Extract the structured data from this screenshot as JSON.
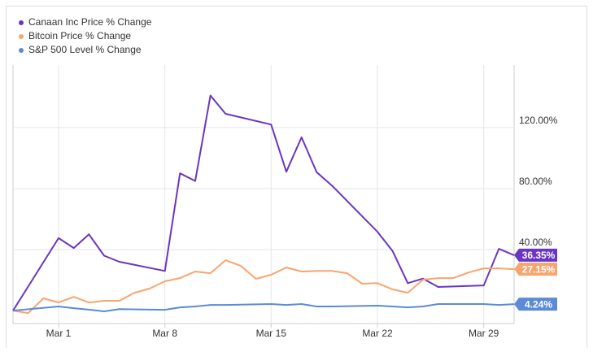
{
  "chart_data": {
    "type": "line",
    "xlim": [
      -2,
      31
    ],
    "xticks": [
      {
        "value": 1,
        "label": "Mar 1"
      },
      {
        "value": 8,
        "label": "Mar 8"
      },
      {
        "value": 15,
        "label": "Mar 15"
      },
      {
        "value": 22,
        "label": "Mar 22"
      },
      {
        "value": 29,
        "label": "Mar 29"
      }
    ],
    "ylim": [
      -8.5,
      161
    ],
    "yticks": [
      {
        "value": 40,
        "label": "40.00%"
      },
      {
        "value": 80,
        "label": "80.00%"
      },
      {
        "value": 120,
        "label": "120.00%"
      }
    ],
    "grid": true,
    "legend": "top-left",
    "series": [
      {
        "name": "Canaan Inc Price % Change",
        "color": "#6a35c2",
        "x": [
          -2,
          1,
          2,
          3,
          4,
          5,
          8,
          9,
          10,
          11,
          12,
          15,
          16,
          17,
          18,
          19,
          22,
          23,
          24,
          25,
          26,
          29,
          30,
          31
        ],
        "values": [
          0,
          47.5,
          41,
          50,
          36,
          32,
          26,
          90,
          85,
          141,
          129,
          122,
          91,
          113.6,
          90.7,
          82,
          51.7,
          39,
          18,
          21,
          15.5,
          16.5,
          40.5,
          36.35
        ],
        "end_label": "36.35%"
      },
      {
        "name": "Bitcoin Price % Change",
        "color": "#f7a56e",
        "x": [
          -2,
          -1,
          0,
          1,
          2,
          3,
          4,
          5,
          6,
          7,
          8,
          9,
          10,
          11,
          12,
          13,
          14,
          15,
          16,
          17,
          18,
          19,
          20,
          21,
          22,
          23,
          24,
          25,
          26,
          27,
          28,
          29,
          30,
          31
        ],
        "values": [
          0,
          -1.6,
          8,
          5.3,
          9,
          5.3,
          6.4,
          6.4,
          11.7,
          14.4,
          19.2,
          21.3,
          25.6,
          24.5,
          33,
          29.3,
          20.8,
          23.5,
          28.3,
          25.6,
          26,
          26,
          24.5,
          17.6,
          18,
          13.9,
          11.7,
          20.3,
          21.3,
          21.3,
          25,
          27.7,
          27.7,
          27.15
        ],
        "end_label": "27.15%"
      },
      {
        "name": "S&P 500 Level % Change",
        "color": "#5b8bd6",
        "x": [
          -2,
          1,
          2,
          3,
          4,
          5,
          8,
          9,
          10,
          11,
          12,
          15,
          16,
          17,
          18,
          19,
          22,
          23,
          24,
          25,
          26,
          29,
          30,
          31
        ],
        "values": [
          0,
          2.7,
          1.6,
          0.6,
          -0.5,
          1,
          0.5,
          2.1,
          2.7,
          3.7,
          3.7,
          4.3,
          3.7,
          4.3,
          2.7,
          2.7,
          3.2,
          2.7,
          2.1,
          2.7,
          4.3,
          4.3,
          3.7,
          4.24
        ],
        "end_label": "4.24%"
      }
    ]
  }
}
